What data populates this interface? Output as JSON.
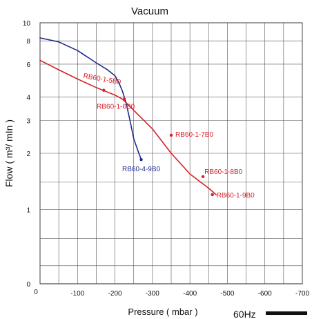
{
  "chart_data": {
    "type": "line",
    "title": "Vacuum",
    "xlabel": "Pressure ( mbar )",
    "ylabel": "Flow ( m³/ mIn )",
    "frequency_label": "60Hz",
    "x_scale": "linear",
    "y_scale": "log",
    "xlim": [
      0,
      -700
    ],
    "ylim": [
      0.4,
      10
    ],
    "grid": true,
    "x_ticks": [
      {
        "value": 0,
        "label": "0"
      },
      {
        "value": -100,
        "label": "-100"
      },
      {
        "value": -200,
        "label": "-200"
      },
      {
        "value": -300,
        "label": "-300"
      },
      {
        "value": -400,
        "label": "-400"
      },
      {
        "value": -500,
        "label": "-500"
      },
      {
        "value": -600,
        "label": "-600"
      },
      {
        "value": -700,
        "label": "-700"
      }
    ],
    "x_gridlines": [
      0,
      -50,
      -100,
      -150,
      -200,
      -250,
      -300,
      -350,
      -400,
      -450,
      -500,
      -550,
      -600,
      -650,
      -700
    ],
    "y_ticks": [
      {
        "value": 10,
        "label": "10"
      },
      {
        "value": 8,
        "label": "8"
      },
      {
        "value": 6,
        "label": "6"
      },
      {
        "value": 4,
        "label": "4"
      },
      {
        "value": 3,
        "label": "3"
      },
      {
        "value": 2,
        "label": "2"
      },
      {
        "value": 1,
        "label": "1"
      },
      {
        "value": 0.4,
        "label": "0"
      }
    ],
    "y_gridlines": [
      10,
      8,
      6,
      4,
      3,
      2,
      1.4,
      1,
      0.7,
      0.5
    ],
    "series": [
      {
        "color": "#1f2a8c",
        "x": [
          0,
          -50,
          -100,
          -150,
          -180,
          -200,
          -210,
          -220,
          -230,
          -240,
          -250,
          -260,
          -270
        ],
        "y": [
          8.3,
          7.9,
          7.1,
          6.1,
          5.6,
          5.2,
          4.8,
          4.3,
          3.7,
          3.0,
          2.4,
          2.1,
          1.85
        ]
      },
      {
        "color": "#d62027",
        "x": [
          0,
          -50,
          -100,
          -150,
          -200,
          -220,
          -250,
          -300,
          -350,
          -400,
          -450,
          -470
        ],
        "y": [
          6.3,
          5.6,
          5.0,
          4.5,
          4.1,
          3.9,
          3.4,
          2.7,
          2.0,
          1.55,
          1.3,
          1.2
        ]
      }
    ],
    "points": [
      {
        "label": "RB60-1-5B0",
        "x": -170,
        "y": 4.35,
        "color": "#d62027"
      },
      {
        "label": "RB60-1-6B0",
        "x": -225,
        "y": 3.9,
        "color": "#d62027"
      },
      {
        "label": "RB60-1-7B0",
        "x": -350,
        "y": 2.5,
        "color": "#d62027"
      },
      {
        "label": "RB60-1-8B0",
        "x": -435,
        "y": 1.5,
        "color": "#d62027"
      },
      {
        "label": "RB60-1-9B0",
        "x": -460,
        "y": 1.2,
        "color": "#d62027"
      },
      {
        "label": "RB60-4-9B0",
        "x": -270,
        "y": 1.85,
        "color": "#1f2a8c"
      }
    ]
  }
}
